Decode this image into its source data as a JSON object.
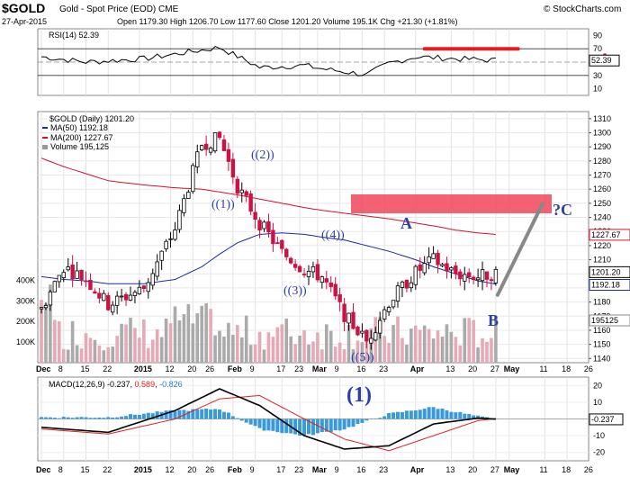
{
  "header": {
    "symbol": "$GOLD",
    "description": "Gold - Spot Price (EOD)",
    "exchange": "CME",
    "date": "27-Apr-2015",
    "ohlc_line": "Open 1179.30  High 1206.70  Low 1177.60  Close 1201.20  Volume 195.1K  Chg +21.30 (+1.81%)",
    "copyright": "© StockCharts.com",
    "open": 1179.3,
    "high": 1206.7,
    "low": 1177.6,
    "close": 1201.2,
    "volume": "195.1K",
    "change": "+21.30 (+1.81%)"
  },
  "colors": {
    "up_candle": "#000000",
    "down_candle": "#cc1144",
    "ma50": "#1a2d9c",
    "ma200": "#d0132d",
    "rsi_line": "#000000",
    "rsi_marker": "#e02020",
    "zone": "#f0465a",
    "wave_label": "#2b3fa8",
    "macd_line": "#000000",
    "signal_line": "#e02020",
    "hist": "#3a9ad9",
    "volume_up": "#aaaaaa",
    "volume_down": "#e5aab6"
  },
  "rsi": {
    "label": "RSI(14) 52.39",
    "current": 52.39,
    "current_label": "52.39",
    "ticks": [
      "90",
      "70",
      "50",
      "30",
      "10"
    ],
    "ylim": [
      0,
      100
    ]
  },
  "price": {
    "legend_title": "$GOLD (Daily) 1201.20",
    "ma50_label": "MA(50) 1192.18",
    "ma200_label": "MA(200) 1227.67",
    "volume_label": "Volume 195,125",
    "ticks": [
      "1310",
      "1300",
      "1290",
      "1280",
      "1270",
      "1260",
      "1250",
      "1240",
      "1230",
      "1220",
      "1210",
      "1200",
      "1190",
      "1180",
      "1170",
      "1160",
      "1150",
      "1140"
    ],
    "ylim": [
      1137,
      1315
    ],
    "tags": {
      "ma200": "1227.67",
      "close": "1201.20",
      "ma50": "1192.18",
      "volume": "195125"
    },
    "volume_ticks": [
      "400K",
      "300K",
      "200K",
      "100K"
    ]
  },
  "waves": {
    "w1": "((1))",
    "w2": "((2))",
    "w3": "((3))",
    "w4": "((4))",
    "w5": "((5))",
    "a": "A",
    "b": "B",
    "c": "?C",
    "big1": "(1)"
  },
  "macd": {
    "label": "MACD(12,26,9) -0.237, 0.589, -0.826",
    "label_main": "MACD(12,26,9) -0.237, ",
    "label_signal": "0.589",
    "label_sep": ", ",
    "label_hist": "-0.826",
    "current_label": "-0.237",
    "ticks": [
      "20",
      "10",
      "0",
      "-10",
      "-20"
    ]
  },
  "x_axis": {
    "labels": [
      "Dec",
      "8",
      "15",
      "22",
      "2015",
      "12",
      "20",
      "26",
      "Feb",
      "9",
      "17",
      "23",
      "Mar",
      "9",
      "16",
      "23",
      "Apr",
      "13",
      "20",
      "27",
      "May",
      "11",
      "18",
      "26"
    ]
  },
  "chart_data": [
    {
      "type": "line",
      "title": "RSI(14) 52.39",
      "x": [
        "2014-12-01",
        "2014-12-15",
        "2015-01-02",
        "2015-01-20",
        "2015-01-26",
        "2015-02-09",
        "2015-02-23",
        "2015-03-02",
        "2015-03-16",
        "2015-03-23",
        "2015-04-01",
        "2015-04-13",
        "2015-04-27"
      ],
      "series": [
        {
          "name": "RSI(14)",
          "values": [
            58,
            50,
            55,
            68,
            72,
            42,
            45,
            40,
            31,
            48,
            58,
            55,
            52.39
          ]
        }
      ],
      "ylim": [
        0,
        100
      ]
    },
    {
      "type": "line",
      "title": "$GOLD (Daily) 1201.20",
      "x": [
        "2014-12-01",
        "2014-12-08",
        "2014-12-15",
        "2014-12-22",
        "2015-01-02",
        "2015-01-12",
        "2015-01-20",
        "2015-01-26",
        "2015-02-02",
        "2015-02-09",
        "2015-02-17",
        "2015-02-23",
        "2015-03-02",
        "2015-03-09",
        "2015-03-16",
        "2015-03-23",
        "2015-04-01",
        "2015-04-06",
        "2015-04-13",
        "2015-04-20",
        "2015-04-27"
      ],
      "series": [
        {
          "name": "$GOLD",
          "values": [
            1175,
            1205,
            1196,
            1178,
            1190,
            1232,
            1292,
            1296,
            1262,
            1236,
            1215,
            1203,
            1198,
            1171,
            1152,
            1180,
            1201,
            1210,
            1200,
            1198,
            1201.2
          ]
        },
        {
          "name": "MA(50)",
          "values": [
            1198,
            1196,
            1195,
            1193,
            1193,
            1196,
            1205,
            1214,
            1222,
            1228,
            1229,
            1228,
            1226,
            1224,
            1220,
            1216,
            1210,
            1205,
            1200,
            1195,
            1192.18
          ]
        },
        {
          "name": "MA(200)",
          "values": [
            1282,
            1276,
            1271,
            1266,
            1263,
            1261,
            1260,
            1258,
            1256,
            1253,
            1250,
            1247,
            1245,
            1243,
            1241,
            1239,
            1236,
            1234,
            1231,
            1229,
            1227.67
          ]
        }
      ],
      "ylim": [
        1137,
        1315
      ]
    },
    {
      "type": "bar",
      "title": "Volume 195,125",
      "categories": [
        "Dec",
        "Jan",
        "Feb",
        "Mar",
        "Apr"
      ],
      "values": [
        150000,
        180000,
        200000,
        160000,
        195125
      ]
    },
    {
      "type": "line",
      "title": "MACD(12,26,9) -0.237, 0.589, -0.826",
      "x": [
        "2014-12-01",
        "2014-12-22",
        "2015-01-12",
        "2015-01-26",
        "2015-02-09",
        "2015-02-23",
        "2015-03-09",
        "2015-03-23",
        "2015-04-06",
        "2015-04-20",
        "2015-04-27"
      ],
      "series": [
        {
          "name": "MACD",
          "values": [
            -5,
            -8,
            5,
            18,
            8,
            -10,
            -18,
            -16,
            -3,
            0.5,
            -0.237
          ]
        },
        {
          "name": "Signal",
          "values": [
            -6,
            -9,
            0,
            12,
            14,
            0,
            -12,
            -19,
            -10,
            -1,
            0.589
          ]
        },
        {
          "name": "Histogram",
          "values": [
            1,
            1,
            5,
            6,
            -6,
            -10,
            -6,
            3,
            7,
            1.5,
            -0.826
          ]
        }
      ],
      "ylim": [
        -25,
        25
      ]
    }
  ]
}
